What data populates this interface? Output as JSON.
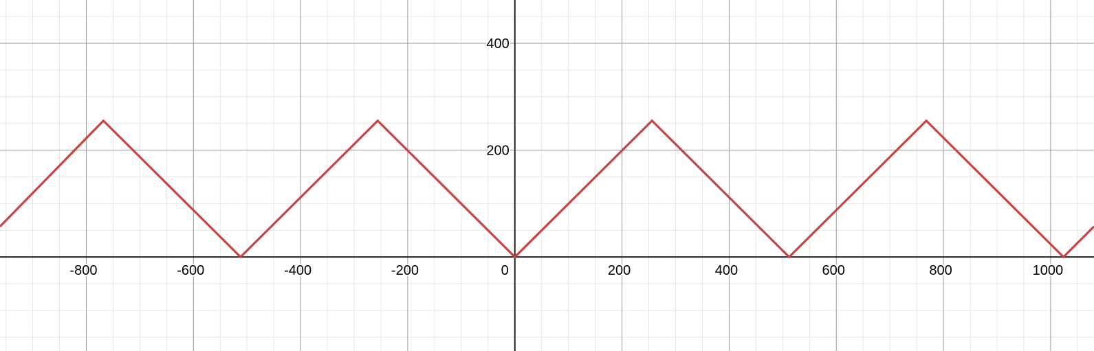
{
  "chart_data": {
    "type": "line",
    "title": "",
    "xlabel": "",
    "ylabel": "",
    "xlim": [
      -961,
      1081
    ],
    "ylim": [
      -176,
      481
    ],
    "grid": true,
    "minor_grid": true,
    "x_ticks": [
      -800,
      -600,
      -400,
      -200,
      0,
      200,
      400,
      600,
      800,
      1000
    ],
    "y_ticks": [
      200,
      400
    ],
    "x_tick_labels": [
      "-800",
      "-600",
      "-400",
      "-200",
      "0",
      "200",
      "400",
      "600",
      "800",
      "1000"
    ],
    "y_tick_labels": [
      "200",
      "400"
    ],
    "series": [
      {
        "color": "#c74440",
        "x": [
          -961,
          -768,
          -512,
          -256,
          0,
          256,
          512,
          768,
          1024,
          1081
        ],
        "y": [
          57,
          255,
          0,
          255,
          0,
          255,
          0,
          255,
          0,
          57
        ]
      }
    ]
  }
}
